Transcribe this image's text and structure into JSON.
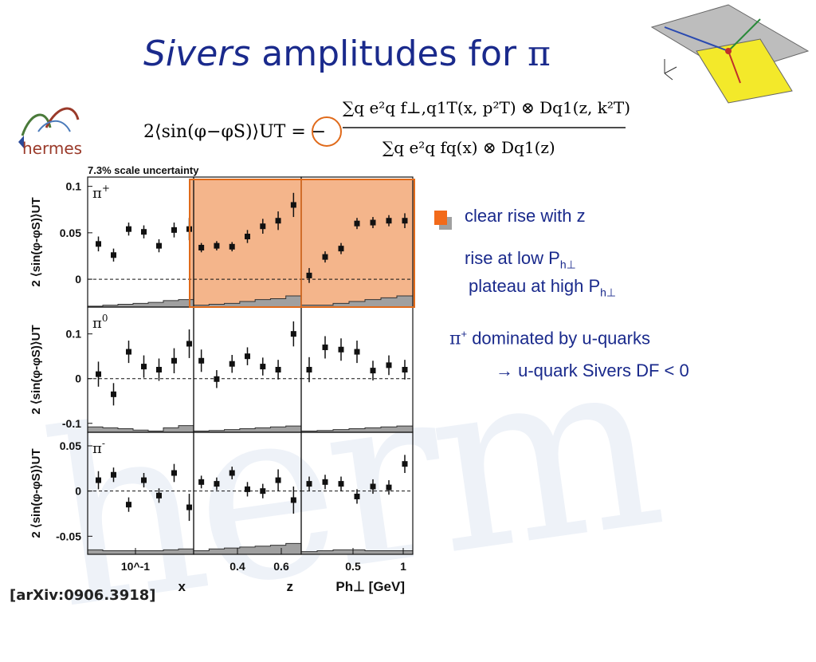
{
  "slide": {
    "title_italic": "Sivers",
    "title_rest": "amplitudes for",
    "title_symbol": "π",
    "logo_text": "hermes",
    "formula": {
      "lhs": "2⟨sin(φ−φS)⟩UT = −",
      "numerator": "∑q e²q f⊥,q1T(x, p²T) ⊗ Dq1(z, k²T)",
      "denominator": "∑q e²q fq(x) ⊗ Dq1(z)"
    },
    "citation": "[arXiv:0906.3918]",
    "bullets": {
      "b1": "clear rise with z",
      "b2_main": "rise at low P",
      "b2_sub": "h⊥",
      "b3_main": "plateau at high P",
      "b3_sub": "h⊥",
      "b4_sym": "π",
      "b4_sup": "+",
      "b4_main": "dominated by u-quarks",
      "b5_arrow": "→",
      "b5_main": "u-quark Sivers DF < 0"
    },
    "inset_icons": [
      "kinematics-diagram-icon"
    ],
    "colors": {
      "title": "#1a2a8c",
      "highlight": "#f2a877",
      "highlight_border": "#e06a1a",
      "bullet": "#f26a1a",
      "band": "#a0a0a0"
    }
  },
  "chart_data": {
    "type": "scatter",
    "scale_note": "7.3% scale uncertainty",
    "ylabel": "2 ⟨sin(φ-φS)⟩UT",
    "columns": [
      {
        "var": "x",
        "label": "x",
        "ticks": [
          "10^-1"
        ]
      },
      {
        "var": "z",
        "label": "z",
        "ticks": [
          "0.4",
          "0.6"
        ]
      },
      {
        "var": "Ph",
        "label": "Ph⊥ [GeV]",
        "ticks": [
          "0.5",
          "1"
        ]
      }
    ],
    "rows": [
      {
        "name": "π+",
        "base": "π",
        "sup": "+",
        "ylim": [
          -0.03,
          0.11
        ],
        "yticks": [
          {
            "v": 0.1,
            "t": "0.1"
          },
          {
            "v": 0.05,
            "t": "0.05"
          },
          {
            "v": 0,
            "t": "0"
          }
        ],
        "panels": [
          {
            "y": [
              0.038,
              0.026,
              0.054,
              0.051,
              0.036,
              0.053,
              0.054
            ],
            "err": [
              0.008,
              0.007,
              0.007,
              0.007,
              0.007,
              0.008,
              0.012
            ],
            "band": [
              0.001,
              0.002,
              0.003,
              0.004,
              0.005,
              0.007,
              0.008
            ]
          },
          {
            "y": [
              0.034,
              0.036,
              0.035,
              0.046,
              0.057,
              0.063,
              0.08
            ],
            "err": [
              0.005,
              0.005,
              0.005,
              0.007,
              0.008,
              0.01,
              0.013
            ],
            "band": [
              0.002,
              0.003,
              0.004,
              0.006,
              0.008,
              0.009,
              0.012
            ]
          },
          {
            "y": [
              0.004,
              0.024,
              0.033,
              0.06,
              0.061,
              0.063,
              0.063
            ],
            "err": [
              0.008,
              0.006,
              0.006,
              0.006,
              0.006,
              0.006,
              0.008
            ],
            "band": [
              0.002,
              0.002,
              0.004,
              0.006,
              0.008,
              0.01,
              0.012
            ]
          }
        ]
      },
      {
        "name": "π0",
        "base": "π",
        "sup": "0",
        "ylim": [
          -0.12,
          0.16
        ],
        "yticks": [
          {
            "v": 0.1,
            "t": "0.1"
          },
          {
            "v": 0,
            "t": "0"
          },
          {
            "v": -0.1,
            "t": "-0.1"
          }
        ],
        "panels": [
          {
            "y": [
              0.01,
              -0.035,
              0.06,
              0.027,
              0.02,
              0.04,
              0.078
            ],
            "err": [
              0.028,
              0.025,
              0.025,
              0.025,
              0.025,
              0.028,
              0.032
            ],
            "band": [
              0.012,
              0.01,
              0.008,
              0.005,
              0.003,
              0.01,
              0.015
            ]
          },
          {
            "y": [
              0.04,
              -0.001,
              0.033,
              0.05,
              0.027,
              0.02,
              0.1
            ],
            "err": [
              0.025,
              0.02,
              0.02,
              0.02,
              0.02,
              0.022,
              0.028
            ],
            "band": [
              0.003,
              0.004,
              0.006,
              0.008,
              0.01,
              0.012,
              0.014
            ]
          },
          {
            "y": [
              0.02,
              0.07,
              0.065,
              0.06,
              0.018,
              0.03,
              0.02
            ],
            "err": [
              0.028,
              0.025,
              0.025,
              0.025,
              0.022,
              0.022,
              0.022
            ],
            "band": [
              0.003,
              0.004,
              0.006,
              0.008,
              0.01,
              0.012,
              0.014
            ]
          }
        ]
      },
      {
        "name": "π-",
        "base": "π",
        "sup": "-",
        "ylim": [
          -0.07,
          0.065
        ],
        "yticks": [
          {
            "v": 0.05,
            "t": "0.05"
          },
          {
            "v": 0,
            "t": "0"
          },
          {
            "v": -0.05,
            "t": "-0.05"
          }
        ],
        "panels": [
          {
            "y": [
              0.012,
              0.018,
              -0.015,
              0.012,
              -0.005,
              0.02,
              -0.018
            ],
            "err": [
              0.01,
              0.008,
              0.008,
              0.008,
              0.008,
              0.01,
              0.015
            ],
            "band": [
              0.005,
              0.004,
              0.004,
              0.004,
              0.004,
              0.005,
              0.006
            ]
          },
          {
            "y": [
              0.01,
              0.008,
              0.02,
              0.002,
              0.0,
              0.012,
              -0.01
            ],
            "err": [
              0.007,
              0.007,
              0.007,
              0.008,
              0.008,
              0.012,
              0.015
            ],
            "band": [
              0.004,
              0.006,
              0.007,
              0.008,
              0.009,
              0.01,
              0.012
            ]
          },
          {
            "y": [
              0.008,
              0.01,
              0.008,
              -0.006,
              0.005,
              0.004,
              0.03
            ],
            "err": [
              0.008,
              0.008,
              0.008,
              0.008,
              0.008,
              0.008,
              0.01
            ],
            "band": [
              0.003,
              0.004,
              0.005,
              0.005,
              0.004,
              0.004,
              0.004
            ]
          }
        ]
      }
    ]
  }
}
